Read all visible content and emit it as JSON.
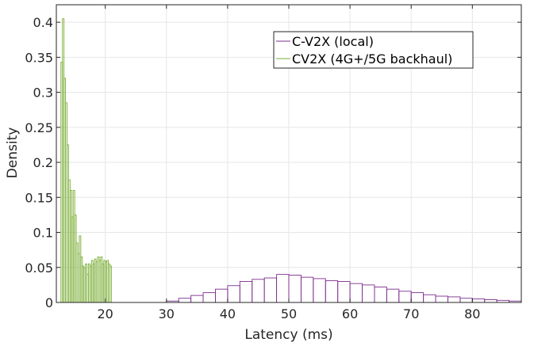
{
  "chart_data": {
    "type": "histogram",
    "xlabel": "Latency (ms)",
    "ylabel": "Density",
    "xlim": [
      12,
      88
    ],
    "ylim": [
      0,
      0.425
    ],
    "xticks": [
      20,
      30,
      40,
      50,
      60,
      70,
      80
    ],
    "yticks": [
      0,
      0.05,
      0.1,
      0.15,
      0.2,
      0.25,
      0.3,
      0.35,
      0.4
    ],
    "ytick_labels": [
      "0",
      "0.05",
      "0.1",
      "0.15",
      "0.2",
      "0.25",
      "0.3",
      "0.35",
      "0.4"
    ],
    "grid": true,
    "legend_position": "top-right",
    "series": [
      {
        "name": "C-V2X (local)",
        "color": "#7e2f8e",
        "bin_edges": [
          30,
          32,
          34,
          36,
          38,
          40,
          42,
          44,
          46,
          48,
          50,
          52,
          54,
          56,
          58,
          60,
          62,
          64,
          66,
          68,
          70,
          72,
          74,
          76,
          78,
          80,
          82,
          84,
          86,
          88
        ],
        "values": [
          0.002,
          0.006,
          0.01,
          0.014,
          0.019,
          0.024,
          0.03,
          0.033,
          0.035,
          0.04,
          0.039,
          0.036,
          0.034,
          0.031,
          0.03,
          0.027,
          0.025,
          0.022,
          0.019,
          0.016,
          0.014,
          0.011,
          0.009,
          0.008,
          0.006,
          0.005,
          0.004,
          0.003,
          0.002
        ]
      },
      {
        "name": "CV2X (4G+/5G backhaul)",
        "color": "#77ac30",
        "bin_edges": [
          12.75,
          13,
          13.25,
          13.5,
          13.75,
          14,
          14.25,
          14.5,
          14.75,
          15,
          15.25,
          15.5,
          15.75,
          16,
          16.25,
          16.5,
          16.75,
          17,
          17.25,
          17.5,
          17.75,
          18,
          18.25,
          18.5,
          18.75,
          19,
          19.25,
          19.5,
          19.75,
          20,
          20.25,
          20.5,
          20.75,
          21
        ],
        "values": [
          0.343,
          0.405,
          0.32,
          0.285,
          0.225,
          0.175,
          0.16,
          0.122,
          0.16,
          0.125,
          0.085,
          0.07,
          0.095,
          0.065,
          0.052,
          0.049,
          0.055,
          0.04,
          0.055,
          0.052,
          0.06,
          0.055,
          0.062,
          0.058,
          0.065,
          0.06,
          0.065,
          0.055,
          0.06,
          0.058,
          0.06,
          0.055,
          0.052
        ]
      }
    ]
  }
}
